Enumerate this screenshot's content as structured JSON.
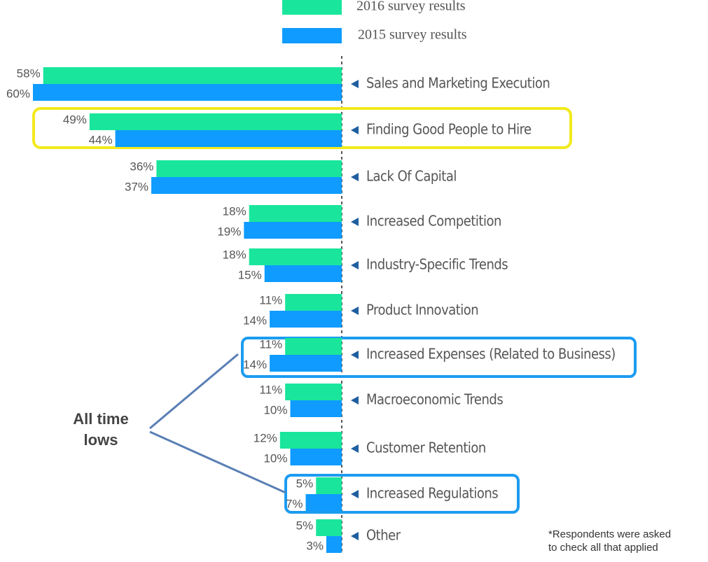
{
  "chart_data": {
    "type": "bar",
    "orientation": "horizontal-left",
    "categories": [
      "Sales and Marketing Execution",
      "Finding Good People to Hire",
      "Lack Of Capital",
      "Increased Competition",
      "Industry-Specific Trends",
      "Product Innovation",
      "Increased Expenses (Related to Business)",
      "Macroeconomic Trends",
      "Customer Retention",
      "Increased Regulations",
      "Other"
    ],
    "series": [
      {
        "name": "2016 survey results",
        "color": "#19e69c",
        "values": [
          58,
          49,
          36,
          18,
          18,
          11,
          11,
          11,
          12,
          5,
          5
        ],
        "value_labels": [
          "58%",
          "49%",
          "36%",
          "18%",
          "18%",
          "11%",
          "11%",
          "11%",
          "12%",
          "5%",
          "5%"
        ]
      },
      {
        "name": "2015 survey results",
        "color": "#0f9bff",
        "values": [
          60,
          44,
          37,
          19,
          15,
          14,
          14,
          10,
          10,
          7,
          3
        ],
        "value_labels": [
          "60%",
          "44%",
          "37%",
          "19%",
          "15%",
          "14%",
          "14%",
          "10%",
          "10%",
          "7%",
          "3%"
        ]
      }
    ],
    "annotation": [
      "All time",
      "lows"
    ],
    "footnote": [
      "*Respondents were asked",
      "to check all that applied"
    ]
  }
}
